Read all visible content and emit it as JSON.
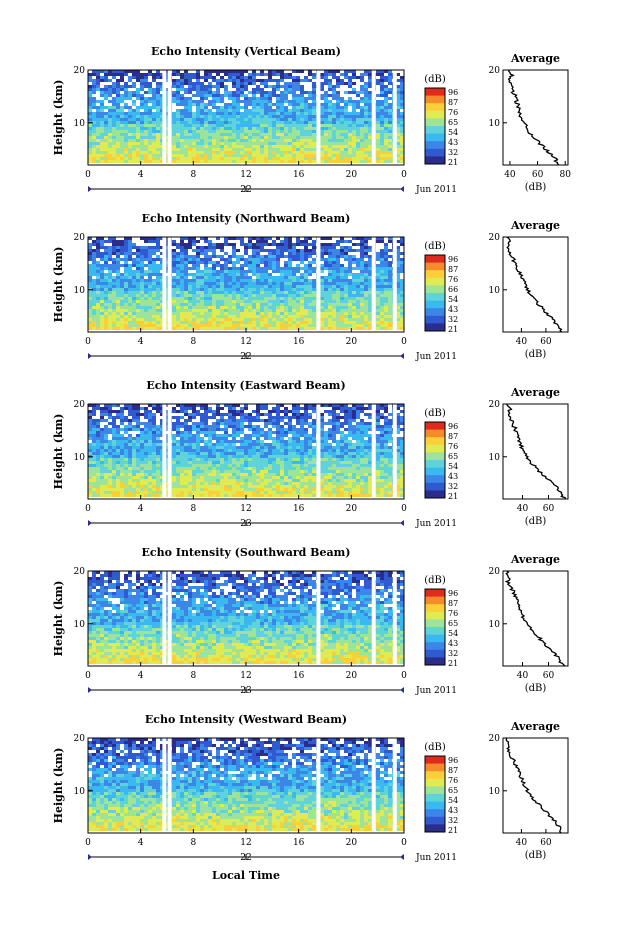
{
  "chart_data": [
    {
      "type": "heatmap",
      "title": "Echo Intensity (Vertical Beam)",
      "ylabel": "Height (km)",
      "yticks": [
        "20",
        "10"
      ],
      "ylim": [
        2,
        20
      ],
      "xticks": [
        "0",
        "4",
        "8",
        "12",
        "16",
        "20",
        "0"
      ],
      "xlim": [
        0,
        24
      ],
      "date_tick": "22",
      "month_label": "Jun 2011",
      "colorbar": {
        "unit": "(dB)",
        "labels": [
          "96",
          "87",
          "76",
          "65",
          "54",
          "43",
          "32",
          "21"
        ]
      },
      "gap_hours": [
        5.8,
        6.2,
        17.5,
        21.7,
        23.3
      ],
      "profile": {
        "title": "Average",
        "xticks": [
          "40",
          "60",
          "80"
        ],
        "xlim": [
          35,
          82
        ],
        "xlabel": "(dB)",
        "yticks": [
          "20",
          "10"
        ],
        "height_km": [
          2,
          3,
          4,
          5,
          6,
          7,
          8,
          9,
          10,
          11,
          12,
          13,
          14,
          15,
          16,
          17,
          18,
          19,
          20
        ],
        "avg_db": [
          75,
          73,
          70,
          66,
          62,
          58,
          54,
          52,
          50,
          48,
          47,
          46,
          45,
          44,
          42,
          42,
          40,
          41,
          39
        ]
      }
    },
    {
      "type": "heatmap",
      "title": "Echo Intensity (Northward Beam)",
      "ylabel": "Height (km)",
      "yticks": [
        "20",
        "10"
      ],
      "ylim": [
        2,
        20
      ],
      "xticks": [
        "0",
        "4",
        "8",
        "12",
        "16",
        "20",
        "0"
      ],
      "xlim": [
        0,
        24
      ],
      "date_tick": "22",
      "month_label": "Jun 2011",
      "colorbar": {
        "unit": "(dB)",
        "labels": [
          "96",
          "87",
          "76",
          "66",
          "54",
          "43",
          "32",
          "21"
        ]
      },
      "gap_hours": [
        5.8,
        6.2,
        17.5,
        21.7,
        23.3
      ],
      "profile": {
        "title": "Average",
        "xticks": [
          "40",
          "60"
        ],
        "xlim": [
          25,
          78
        ],
        "xlabel": "(dB)",
        "yticks": [
          "20",
          "10"
        ],
        "height_km": [
          2,
          3,
          4,
          5,
          6,
          7,
          8,
          9,
          10,
          11,
          12,
          13,
          14,
          15,
          16,
          17,
          18,
          19,
          20
        ],
        "avg_db": [
          73,
          70,
          67,
          63,
          59,
          55,
          51,
          48,
          45,
          43,
          41,
          39,
          37,
          35,
          33,
          31,
          29,
          30,
          28
        ]
      }
    },
    {
      "type": "heatmap",
      "title": "Echo Intensity (Eastward Beam)",
      "ylabel": "Height (km)",
      "yticks": [
        "20",
        "10"
      ],
      "ylim": [
        2,
        20
      ],
      "xticks": [
        "0",
        "4",
        "8",
        "12",
        "16",
        "20",
        "0"
      ],
      "xlim": [
        0,
        24
      ],
      "date_tick": "23",
      "month_label": "Jun 2011",
      "colorbar": {
        "unit": "(dB)",
        "labels": [
          "96",
          "87",
          "76",
          "65",
          "54",
          "43",
          "32",
          "21"
        ]
      },
      "gap_hours": [
        5.8,
        6.2,
        17.5,
        21.7,
        23.3
      ],
      "profile": {
        "title": "Average",
        "xticks": [
          "40",
          "60"
        ],
        "xlim": [
          25,
          75
        ],
        "xlabel": "(dB)",
        "yticks": [
          "20",
          "10"
        ],
        "height_km": [
          2,
          3,
          4,
          5,
          6,
          7,
          8,
          9,
          10,
          11,
          12,
          13,
          14,
          15,
          16,
          17,
          18,
          19,
          20
        ],
        "avg_db": [
          72,
          70,
          67,
          63,
          58,
          54,
          50,
          46,
          43,
          41,
          39,
          37,
          36,
          35,
          33,
          31,
          29,
          30,
          28
        ]
      }
    },
    {
      "type": "heatmap",
      "title": "Echo Intensity (Southward Beam)",
      "ylabel": "Height (km)",
      "yticks": [
        "20",
        "10"
      ],
      "ylim": [
        2,
        20
      ],
      "xticks": [
        "0",
        "4",
        "8",
        "12",
        "16",
        "20",
        "0"
      ],
      "xlim": [
        0,
        24
      ],
      "date_tick": "23",
      "month_label": "Jun 2011",
      "colorbar": {
        "unit": "(dB)",
        "labels": [
          "96",
          "87",
          "76",
          "65",
          "54",
          "43",
          "32",
          "21"
        ]
      },
      "gap_hours": [
        5.8,
        6.2,
        17.5,
        21.7,
        23.3
      ],
      "profile": {
        "title": "Average",
        "xticks": [
          "40",
          "60"
        ],
        "xlim": [
          25,
          75
        ],
        "xlabel": "(dB)",
        "yticks": [
          "20",
          "10"
        ],
        "height_km": [
          2,
          3,
          4,
          5,
          6,
          7,
          8,
          9,
          10,
          11,
          12,
          13,
          14,
          15,
          16,
          17,
          18,
          19,
          20
        ],
        "avg_db": [
          72,
          69,
          66,
          62,
          58,
          54,
          50,
          46,
          43,
          41,
          39,
          37,
          36,
          35,
          33,
          31,
          29,
          30,
          28
        ]
      }
    },
    {
      "type": "heatmap",
      "title": "Echo Intensity (Westward Beam)",
      "ylabel": "Height (km)",
      "yticks": [
        "20",
        "10"
      ],
      "ylim": [
        2,
        20
      ],
      "xticks": [
        "0",
        "4",
        "8",
        "12",
        "16",
        "20",
        "0"
      ],
      "xlim": [
        0,
        24
      ],
      "date_tick": "22",
      "month_label": "Jun 2011",
      "colorbar": {
        "unit": "(dB)",
        "labels": [
          "96",
          "87",
          "76",
          "65",
          "54",
          "43",
          "32",
          "21"
        ]
      },
      "gap_hours": [
        5.8,
        6.2,
        17.5,
        21.7,
        23.3
      ],
      "profile": {
        "title": "Average",
        "xticks": [
          "40",
          "60"
        ],
        "xlim": [
          25,
          78
        ],
        "xlabel": "(dB)",
        "yticks": [
          "20",
          "10"
        ],
        "height_km": [
          2,
          3,
          4,
          5,
          6,
          7,
          8,
          9,
          10,
          11,
          12,
          13,
          14,
          15,
          16,
          17,
          18,
          19,
          20
        ],
        "avg_db": [
          73,
          71,
          68,
          64,
          60,
          56,
          52,
          48,
          45,
          43,
          41,
          39,
          37,
          35,
          33,
          31,
          29,
          30,
          28
        ]
      }
    }
  ],
  "xlabel": "Local Time",
  "colors": {
    "colormap": [
      "#2b2d8c",
      "#2f5ad0",
      "#3c86e8",
      "#39b9ef",
      "#5fd3d8",
      "#9ee39a",
      "#e0ea52",
      "#fbcf38",
      "#f58b2b",
      "#dd2c1d"
    ],
    "gap": "#ffffff",
    "ink": "#000000"
  }
}
